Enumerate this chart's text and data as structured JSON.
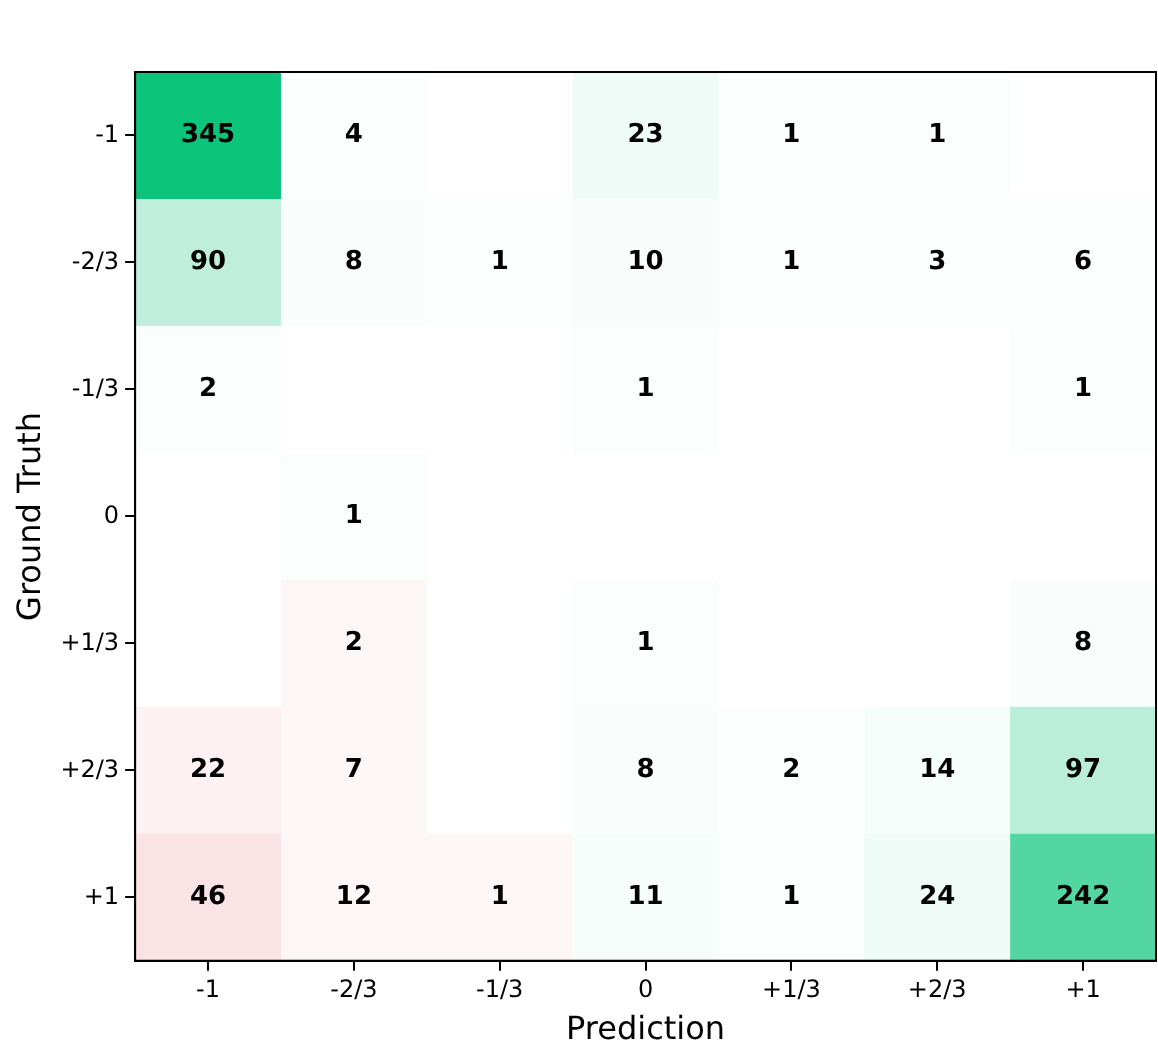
{
  "chart_data": {
    "type": "heatmap",
    "xlabel": "Prediction",
    "ylabel": "Ground Truth",
    "categories": [
      "-1",
      "-2/3",
      "-1/3",
      "0",
      "+1/3",
      "+2/3",
      "+1"
    ],
    "y_categories": [
      "-1",
      "-2/3",
      "-1/3",
      "0",
      "+1/3",
      "+2/3",
      "+1"
    ],
    "cells": [
      [
        345,
        4,
        null,
        23,
        1,
        1,
        null
      ],
      [
        90,
        8,
        1,
        10,
        1,
        3,
        6
      ],
      [
        2,
        null,
        null,
        1,
        null,
        null,
        1
      ],
      [
        null,
        1,
        null,
        null,
        null,
        null,
        null
      ],
      [
        null,
        2,
        null,
        1,
        null,
        null,
        8
      ],
      [
        22,
        7,
        null,
        8,
        2,
        14,
        97
      ],
      [
        46,
        12,
        1,
        11,
        1,
        24,
        242
      ]
    ],
    "data_labels": true
  }
}
